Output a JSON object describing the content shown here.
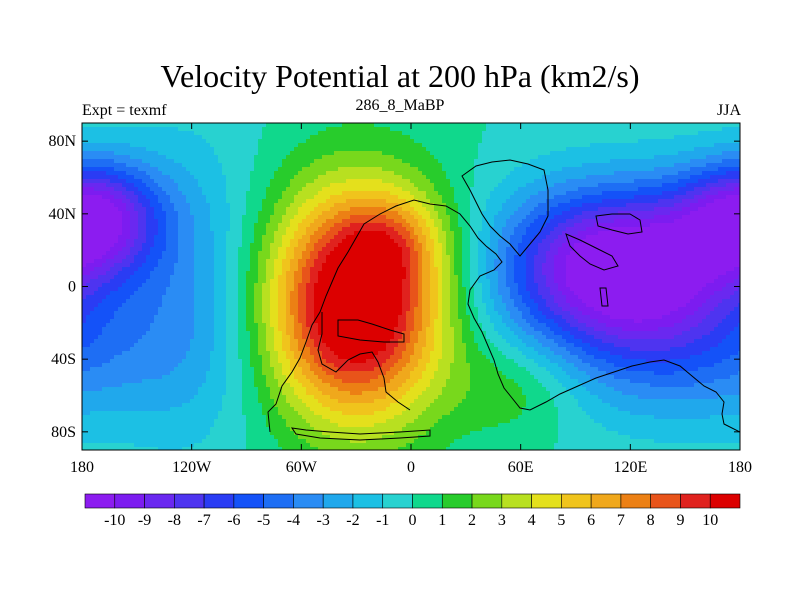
{
  "chart_data": {
    "type": "heatmap",
    "title": "Velocity Potential at 200 hPa (km2/s)",
    "left_string": "Expt = texmf",
    "center_string": "286_8_MaBP",
    "right_string": "JJA",
    "x_ticks": [
      "180",
      "120W",
      "60W",
      "0",
      "60E",
      "120E",
      "180"
    ],
    "x_tick_values": [
      -180,
      -120,
      -60,
      0,
      60,
      120,
      180
    ],
    "y_ticks": [
      "80N",
      "40N",
      "0",
      "40S",
      "80S"
    ],
    "y_tick_values": [
      80,
      40,
      0,
      -40,
      -80
    ],
    "xlim": [
      -180,
      180
    ],
    "ylim": [
      -90,
      90
    ],
    "colorbar_labels": [
      "-10",
      "-9",
      "-8",
      "-7",
      "-6",
      "-5",
      "-4",
      "-3",
      "-2",
      "-1",
      "0",
      "1",
      "2",
      "3",
      "4",
      "5",
      "6",
      "7",
      "8",
      "9",
      "10"
    ],
    "colorbar_colors": [
      "#8c1cf0",
      "#7c1cf0",
      "#6a28f0",
      "#4e34f0",
      "#2a3cf4",
      "#1452f8",
      "#1e6ef4",
      "#2a8cf4",
      "#20a8ec",
      "#1cc0e4",
      "#28d2d0",
      "#10d88c",
      "#28cc2c",
      "#78d81c",
      "#b8e020",
      "#e4e01c",
      "#f0c41c",
      "#f0a81c",
      "#ec8014",
      "#e8541a",
      "#e0221e",
      "#dc0000"
    ],
    "extrema": [
      {
        "name": "min-west-pacific-north",
        "lon": -172,
        "lat": 40,
        "value": -9.5
      },
      {
        "name": "min-asia",
        "lon": 115,
        "lat": 15,
        "value": -10.5
      },
      {
        "name": "max-atlantic-africa",
        "lon": -30,
        "lat": -10,
        "value": 11
      }
    ]
  }
}
